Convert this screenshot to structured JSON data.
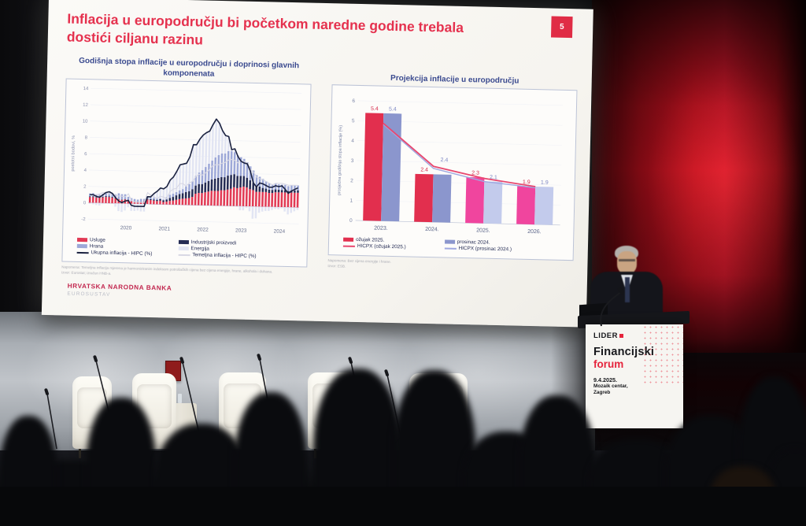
{
  "slide": {
    "title": "Inflacija u europodručju bi početkom naredne godine trebala dostići ciljanu razinu",
    "slide_number": "5",
    "footer": {
      "bank": "HRVATSKA NARODNA BANKA",
      "system": "EUROSUSTAV"
    }
  },
  "left_chart": {
    "title": "Godišnja stopa inflacije u europodručju i doprinosi glavnih komponenata",
    "footnote_line1": "Napomena: Temeljna inflacija mjerena je harmoniziranim indeksom potrošačkih cijena bez cijena energije, hrane, alkohola i duhana.",
    "footnote_line2": "Izvor: Eurostat; izračun HNB-a.",
    "legend": [
      {
        "label": "Usluge",
        "swatch": "#e23a55",
        "type": "box"
      },
      {
        "label": "Industrijski proizvodi",
        "swatch": "#252c54",
        "type": "box"
      },
      {
        "label": "Hrana",
        "swatch": "#9da8d8",
        "type": "box"
      },
      {
        "label": "Energija",
        "swatch": "#e2e5f3",
        "type": "box"
      },
      {
        "label": "Ukupna inflacija - HIPC (%)",
        "swatch": "#1b2240",
        "type": "line"
      },
      {
        "label": "Temeljna inflacija - HIPC (%)",
        "swatch": "#d8d8e4",
        "type": "line"
      }
    ]
  },
  "right_chart": {
    "title": "Projekcija inflacije u europodručju",
    "footnote_line1": "Napomena: Bez cijena energije i hrane.",
    "footnote_line2": "Izvor: ESB.",
    "legend": [
      {
        "label": "ožujak 2025.",
        "swatch": "#e22f4e",
        "type": "box"
      },
      {
        "label": "prosinac 2024.",
        "swatch": "#8b96cd",
        "type": "box"
      },
      {
        "label": "HICPX (ožujak 2025.)",
        "swatch": "#e8486f",
        "type": "line"
      },
      {
        "label": "HICPX (prosinac 2024.)",
        "swatch": "#9fa8e0",
        "type": "line"
      }
    ]
  },
  "podium": {
    "brand": "LIDER",
    "title_top": "Financijski",
    "title_bottom": "forum",
    "date": "9.4.2025.",
    "venue": "Mozaik centar,",
    "city": "Zagreb"
  },
  "colors": {
    "slide_red": "#e5314e",
    "hnb_red": "#c2274f",
    "podium_red": "#e5243c",
    "wall_red": "#c81522"
  },
  "chart_data": [
    {
      "type": "bar",
      "subtype": "stacked-monthly-contributions-with-lines",
      "title": "Godišnja stopa inflacije u europodručju i doprinosi glavnih komponenata",
      "ylabel": "postotni bodovi, %",
      "ylim": [
        -2,
        14
      ],
      "yticks": [
        14,
        12,
        10,
        8,
        6,
        4,
        2,
        0,
        -2
      ],
      "x_start": "2019-07",
      "x_end": "2024-12",
      "x_tick_labels": [
        "2020",
        "2021",
        "2022",
        "2023",
        "2024"
      ],
      "x_tick_start_indices": [
        6,
        18,
        30,
        42,
        54
      ],
      "series": [
        {
          "name": "Usluge",
          "color": "#e23a55",
          "values": [
            0.7,
            0.7,
            0.65,
            0.65,
            0.7,
            0.75,
            0.75,
            0.7,
            0.6,
            0.5,
            0.45,
            0.5,
            0.4,
            0.3,
            0.25,
            0.25,
            0.25,
            0.3,
            0.55,
            0.5,
            0.45,
            0.4,
            0.45,
            0.3,
            0.35,
            0.45,
            0.5,
            0.6,
            0.7,
            0.75,
            0.8,
            0.85,
            1.0,
            1.4,
            1.5,
            1.5,
            1.6,
            1.7,
            1.8,
            1.8,
            1.8,
            1.9,
            1.9,
            2.0,
            2.1,
            2.3,
            2.2,
            2.3,
            2.4,
            2.3,
            2.1,
            2.0,
            1.8,
            1.8,
            1.8,
            1.8,
            1.7,
            1.7,
            1.8,
            1.8,
            1.8,
            1.8,
            1.7,
            1.8,
            1.8,
            1.8
          ]
        },
        {
          "name": "Industrijski proizvodi",
          "color": "#252c54",
          "values": [
            0.08,
            0.08,
            0.06,
            0.06,
            0.08,
            0.1,
            0.08,
            0.08,
            0.06,
            0.04,
            0.04,
            0.04,
            0.04,
            0.03,
            0.03,
            0.02,
            0.02,
            0.02,
            0.08,
            0.1,
            0.12,
            0.15,
            0.18,
            0.22,
            0.25,
            0.35,
            0.45,
            0.55,
            0.62,
            0.68,
            0.78,
            0.85,
            0.95,
            1.0,
            1.1,
            1.1,
            1.2,
            1.3,
            1.4,
            1.5,
            1.6,
            1.6,
            1.6,
            1.7,
            1.7,
            1.6,
            1.5,
            1.4,
            1.3,
            1.2,
            1.1,
            0.9,
            0.75,
            0.65,
            0.5,
            0.42,
            0.4,
            0.38,
            0.35,
            0.33,
            0.3,
            0.28,
            0.28,
            0.28,
            0.28,
            0.3
          ]
        },
        {
          "name": "Hrana",
          "color": "#9da8d8",
          "values": [
            0.35,
            0.4,
            0.35,
            0.3,
            0.35,
            0.4,
            0.4,
            0.42,
            0.45,
            0.7,
            0.65,
            0.6,
            0.4,
            0.35,
            0.3,
            0.25,
            0.35,
            0.3,
            0.3,
            0.25,
            0.22,
            0.15,
            0.12,
            0.1,
            0.3,
            0.4,
            0.4,
            0.4,
            0.45,
            0.5,
            0.7,
            0.85,
            1.0,
            1.2,
            1.4,
            1.7,
            1.9,
            2.1,
            2.3,
            2.6,
            2.8,
            2.9,
            2.9,
            3.0,
            2.9,
            2.7,
            2.5,
            2.3,
            2.1,
            1.9,
            1.7,
            1.5,
            1.3,
            1.2,
            1.1,
            0.9,
            0.8,
            0.7,
            0.7,
            0.65,
            0.65,
            0.65,
            0.6,
            0.6,
            0.6,
            0.6
          ]
        },
        {
          "name": "Energija",
          "color": "#e2e5f3",
          "values": [
            -0.13,
            -0.18,
            -0.26,
            -0.31,
            -0.13,
            0.05,
            0.17,
            0.0,
            -0.41,
            -0.94,
            -1.04,
            -0.84,
            -0.44,
            -0.88,
            -0.88,
            -0.82,
            -0.92,
            -0.92,
            -0.03,
            0.05,
            0.51,
            0.9,
            1.25,
            1.28,
            1.3,
            1.8,
            2.05,
            2.55,
            3.13,
            3.07,
            2.82,
            3.35,
            4.45,
            3.8,
            4.1,
            4.3,
            4.2,
            4.0,
            4.4,
            4.7,
            3.9,
            2.8,
            2.2,
            1.8,
            0.2,
            0.4,
            -0.1,
            -0.5,
            -0.5,
            -0.2,
            -0.6,
            -1.5,
            -1.45,
            -0.75,
            -0.6,
            -0.52,
            -0.5,
            -0.38,
            -0.25,
            -0.28,
            -0.15,
            -0.53,
            -0.88,
            -0.68,
            -0.48,
            -0.3
          ]
        }
      ],
      "lines": [
        {
          "name": "Ukupna inflacija - HIPC (%)",
          "color": "#1b2240",
          "values": [
            1.0,
            1.0,
            0.8,
            0.7,
            1.0,
            1.3,
            1.4,
            1.2,
            0.7,
            0.3,
            0.1,
            0.3,
            0.4,
            -0.2,
            -0.3,
            -0.3,
            -0.3,
            -0.3,
            0.9,
            0.9,
            1.3,
            1.6,
            2.0,
            1.9,
            2.2,
            3.0,
            3.4,
            4.1,
            4.9,
            5.0,
            5.1,
            5.9,
            7.4,
            7.4,
            8.1,
            8.6,
            8.9,
            9.1,
            9.9,
            10.6,
            10.1,
            9.2,
            8.6,
            8.5,
            6.9,
            7.0,
            6.1,
            5.5,
            5.3,
            5.2,
            4.3,
            2.9,
            2.4,
            2.9,
            2.8,
            2.6,
            2.4,
            2.4,
            2.6,
            2.5,
            2.6,
            2.2,
            1.7,
            2.0,
            2.2,
            2.4
          ]
        },
        {
          "name": "Temeljna inflacija - HIPC (%)",
          "color": "#d8d8e4",
          "values": [
            0.9,
            0.9,
            1.0,
            1.1,
            1.3,
            1.3,
            1.1,
            1.2,
            1.0,
            0.9,
            0.9,
            0.8,
            1.2,
            0.4,
            0.2,
            0.2,
            0.2,
            0.2,
            1.4,
            1.1,
            0.9,
            0.7,
            1.0,
            0.9,
            0.7,
            1.6,
            1.9,
            2.0,
            2.6,
            2.6,
            2.3,
            2.7,
            2.9,
            3.5,
            3.8,
            3.7,
            4.0,
            4.3,
            4.8,
            5.0,
            5.0,
            5.2,
            5.3,
            5.6,
            5.7,
            5.6,
            5.3,
            5.5,
            5.5,
            5.3,
            4.5,
            4.2,
            3.6,
            3.4,
            3.3,
            3.1,
            2.9,
            2.7,
            2.9,
            2.9,
            2.9,
            2.8,
            2.7,
            2.7,
            2.7,
            2.7
          ]
        }
      ]
    },
    {
      "type": "bar",
      "subtype": "grouped-with-lines",
      "title": "Projekcija inflacije u europodručju",
      "ylabel": "prosječna godišnja stopa inflacije (%)",
      "ylim": [
        0,
        6
      ],
      "yticks": [
        0,
        1,
        2,
        3,
        4,
        5,
        6
      ],
      "categories": [
        "2023.",
        "2024.",
        "2025.",
        "2026."
      ],
      "series": [
        {
          "name": "ožujak 2025.",
          "values": [
            5.4,
            2.4,
            2.3,
            1.9
          ],
          "bar_colors": [
            "#e22f4e",
            "#e22f4e",
            "#f0459e",
            "#f0459e"
          ],
          "label_color": "#d5294a"
        },
        {
          "name": "prosinac 2024.",
          "values": [
            5.4,
            2.4,
            2.1,
            1.9
          ],
          "bar_colors": [
            "#8b96cd",
            "#8b96cd",
            "#c3cbec",
            "#c3cbec"
          ],
          "label_color": "#7d87c4"
        }
      ],
      "bar_labels": [
        [
          "5.4",
          "5.4"
        ],
        [
          "2.4",
          "2.4"
        ],
        [
          "2.3",
          "2.1"
        ],
        [
          "1.9",
          "1.9"
        ]
      ],
      "lines": [
        {
          "name": "HICPX (ožujak 2025.)",
          "color": "#e8486f",
          "values": [
            4.9,
            2.8,
            2.25,
            1.9
          ]
        },
        {
          "name": "HICPX (prosinac 2024.)",
          "color": "#9fa8e0",
          "values": [
            4.9,
            2.75,
            2.15,
            1.9
          ]
        }
      ]
    }
  ]
}
